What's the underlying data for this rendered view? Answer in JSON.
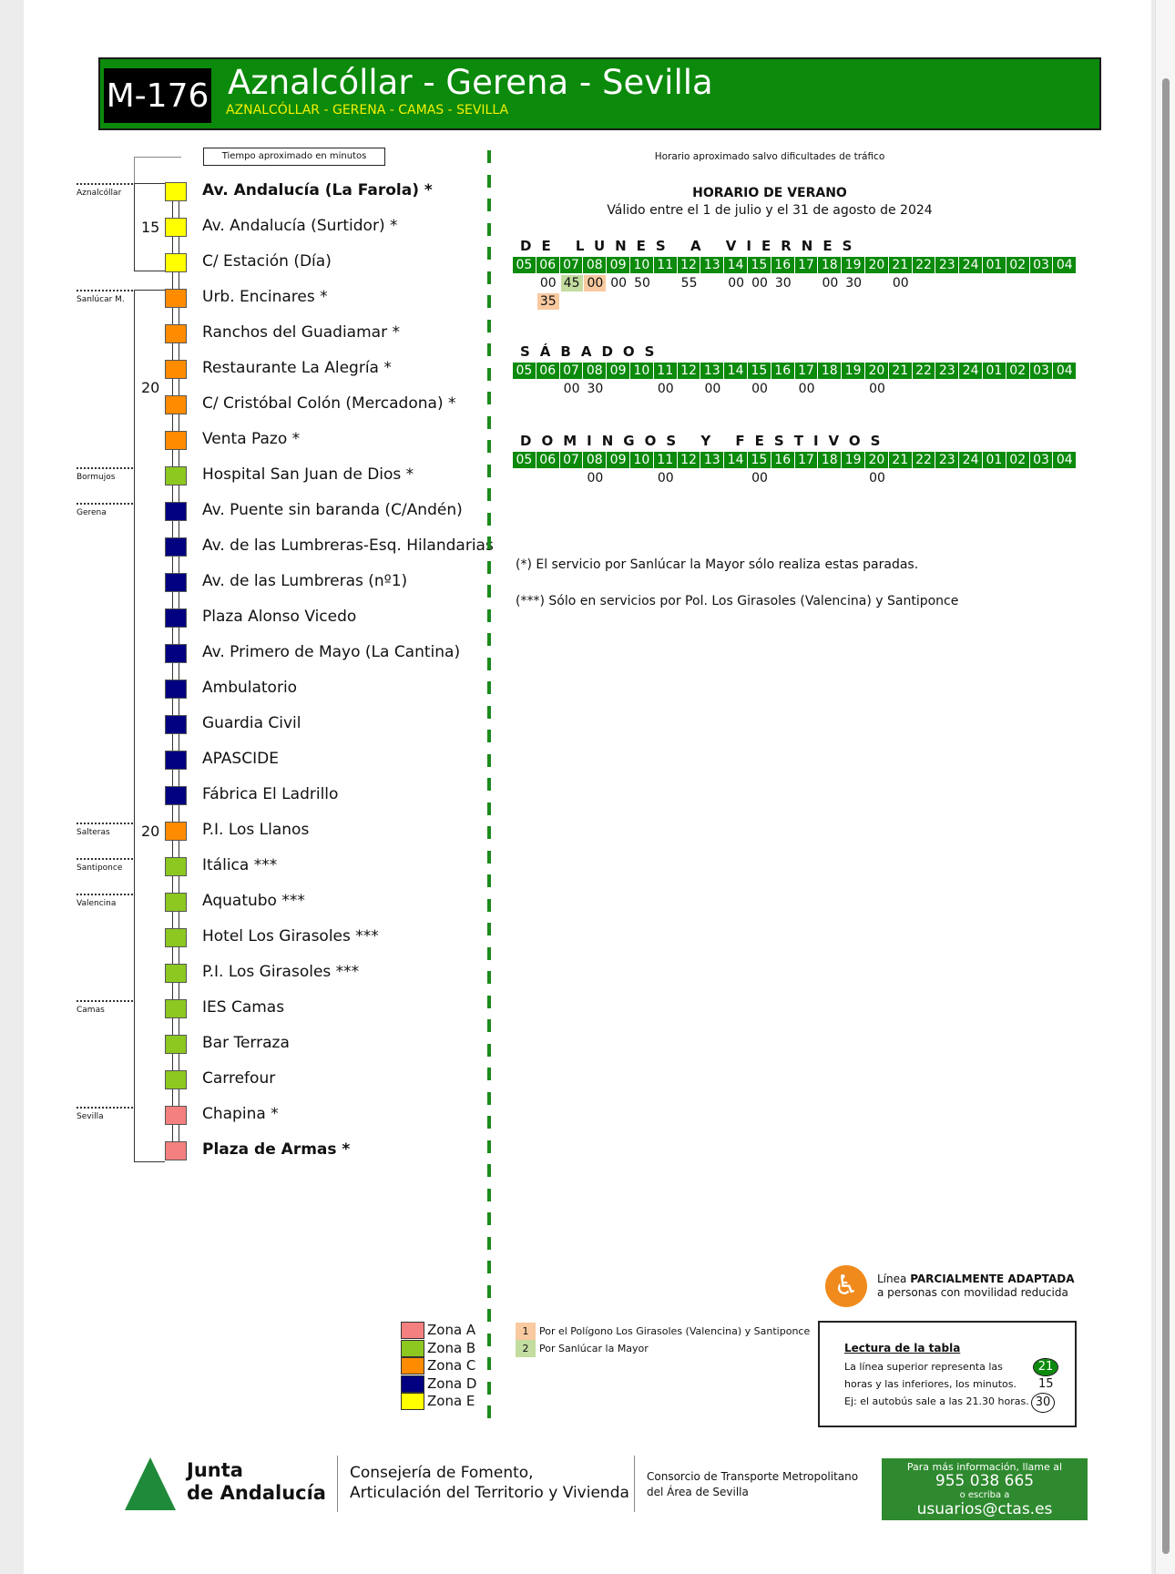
{
  "header": {
    "code": "M-176",
    "title": "Aznalcóllar - Gerena - Sevilla",
    "subtitle": "AZNALCÓLLAR - GERENA - CAMAS - SEVILLA"
  },
  "route": {
    "time_label": "Tiempo aproximado en minutos",
    "times": [
      {
        "value": "15",
        "stop": 1
      },
      {
        "value": "20",
        "stop": 5.5
      },
      {
        "value": "20",
        "stop": 18
      }
    ],
    "towns": [
      {
        "name": "Aznalcóllar",
        "stop": 0
      },
      {
        "name": "Sanlúcar M.",
        "stop": 3
      },
      {
        "name": "Bormujos",
        "stop": 8
      },
      {
        "name": "Gerena",
        "stop": 9
      },
      {
        "name": "Salteras",
        "stop": 18
      },
      {
        "name": "Santiponce",
        "stop": 19
      },
      {
        "name": "Valencina",
        "stop": 20
      },
      {
        "name": "Camas",
        "stop": 23
      },
      {
        "name": "Sevilla",
        "stop": 26
      }
    ],
    "stops": [
      {
        "name": "Av. Andalucía (La Farola) *",
        "zone": "E",
        "bold": true
      },
      {
        "name": "Av. Andalucía (Surtidor) *",
        "zone": "E"
      },
      {
        "name": "C/ Estación (Día)",
        "zone": "E"
      },
      {
        "name": "Urb. Encinares *",
        "zone": "C"
      },
      {
        "name": "Ranchos del Guadiamar *",
        "zone": "C"
      },
      {
        "name": "Restaurante La Alegría *",
        "zone": "C"
      },
      {
        "name": "C/ Cristóbal Colón (Mercadona) *",
        "zone": "C"
      },
      {
        "name": "Venta Pazo *",
        "zone": "C"
      },
      {
        "name": "Hospital San Juan de Dios *",
        "zone": "B"
      },
      {
        "name": "Av. Puente sin baranda (C/Andén)",
        "zone": "D"
      },
      {
        "name": "Av. de las Lumbreras-Esq. Hilandarias",
        "zone": "D"
      },
      {
        "name": "Av. de las Lumbreras (nº1)",
        "zone": "D"
      },
      {
        "name": "Plaza Alonso Vicedo",
        "zone": "D"
      },
      {
        "name": "Av. Primero de Mayo (La Cantina)",
        "zone": "D"
      },
      {
        "name": "Ambulatorio",
        "zone": "D"
      },
      {
        "name": "Guardia Civil",
        "zone": "D"
      },
      {
        "name": "APASCIDE",
        "zone": "D"
      },
      {
        "name": "Fábrica El Ladrillo",
        "zone": "D"
      },
      {
        "name": "P.I. Los Llanos",
        "zone": "C"
      },
      {
        "name": "Itálica ***",
        "zone": "B"
      },
      {
        "name": "Aquatubo ***",
        "zone": "B"
      },
      {
        "name": "Hotel Los Girasoles ***",
        "zone": "B"
      },
      {
        "name": "P.I. Los Girasoles ***",
        "zone": "B"
      },
      {
        "name": "IES Camas",
        "zone": "B"
      },
      {
        "name": "Bar Terraza",
        "zone": "B"
      },
      {
        "name": "Carrefour",
        "zone": "B"
      },
      {
        "name": "Chapina *",
        "zone": "A"
      },
      {
        "name": "Plaza de Armas *",
        "zone": "A",
        "bold": true
      }
    ]
  },
  "zones": [
    {
      "id": "A",
      "label": "Zona A",
      "color": "#f48080"
    },
    {
      "id": "B",
      "label": "Zona B",
      "color": "#8cc820"
    },
    {
      "id": "C",
      "label": "Zona C",
      "color": "#ff8c00"
    },
    {
      "id": "D",
      "label": "Zona D",
      "color": "#000080"
    },
    {
      "id": "E",
      "label": "Zona E",
      "color": "#ffff00"
    }
  ],
  "schedule": {
    "disclaimer": "Horario aproximado salvo dificultades de tráfico",
    "title": "HORARIO DE VERANO",
    "validity": "Válido entre el 1 de julio y el 31 de agosto de 2024",
    "hours": [
      "05",
      "06",
      "07",
      "08",
      "09",
      "10",
      "11",
      "12",
      "13",
      "14",
      "15",
      "16",
      "17",
      "18",
      "19",
      "20",
      "21",
      "22",
      "23",
      "24",
      "01",
      "02",
      "03",
      "04"
    ],
    "variant_colors": {
      "1": "#f9c9a0",
      "2": "#c3dc9f"
    },
    "days": [
      {
        "label": "DE LUNES A VIERNES",
        "departures": [
          {
            "hour": "06",
            "min": "00",
            "row": 0
          },
          {
            "hour": "07",
            "min": "45",
            "row": 0,
            "variant": "2"
          },
          {
            "hour": "08",
            "min": "00",
            "row": 0,
            "variant": "1"
          },
          {
            "hour": "09",
            "min": "00",
            "row": 0
          },
          {
            "hour": "10",
            "min": "50",
            "row": 0
          },
          {
            "hour": "12",
            "min": "55",
            "row": 0
          },
          {
            "hour": "14",
            "min": "00",
            "row": 0
          },
          {
            "hour": "15",
            "min": "00",
            "row": 0
          },
          {
            "hour": "16",
            "min": "30",
            "row": 0
          },
          {
            "hour": "18",
            "min": "00",
            "row": 0
          },
          {
            "hour": "19",
            "min": "30",
            "row": 0
          },
          {
            "hour": "21",
            "min": "00",
            "row": 0
          },
          {
            "hour": "06",
            "min": "35",
            "row": 1,
            "variant": "1"
          }
        ]
      },
      {
        "label": "SÁBADOS",
        "departures": [
          {
            "hour": "07",
            "min": "00",
            "row": 0
          },
          {
            "hour": "08",
            "min": "30",
            "row": 0
          },
          {
            "hour": "11",
            "min": "00",
            "row": 0
          },
          {
            "hour": "13",
            "min": "00",
            "row": 0
          },
          {
            "hour": "15",
            "min": "00",
            "row": 0
          },
          {
            "hour": "17",
            "min": "00",
            "row": 0
          },
          {
            "hour": "20",
            "min": "00",
            "row": 0
          }
        ]
      },
      {
        "label": "DOMINGOS Y FESTIVOS",
        "departures": [
          {
            "hour": "08",
            "min": "00",
            "row": 0
          },
          {
            "hour": "11",
            "min": "00",
            "row": 0
          },
          {
            "hour": "15",
            "min": "00",
            "row": 0
          },
          {
            "hour": "20",
            "min": "00",
            "row": 0
          }
        ]
      }
    ],
    "notes": [
      "(*) El servicio por Sanlúcar la Mayor sólo realiza estas paradas.",
      "(***) Sólo en servicios por Pol. Los Girasoles (Valencina) y Santiponce"
    ]
  },
  "variants": [
    {
      "num": "1",
      "text": "Por el Polígono Los Girasoles (Valencina) y Santiponce"
    },
    {
      "num": "2",
      "text": "Por Sanlúcar la Mayor"
    }
  ],
  "accessibility": {
    "prefix": "Línea ",
    "strong": "PARCIALMENTE ADAPTADA",
    "line2": "a personas con movilidad reducida"
  },
  "reading": {
    "title": "Lectura de la tabla",
    "lines": [
      "La línea superior representa las",
      "horas y las inferiores, los minutos.",
      "Ej: el autobús sale a las 21.30 horas."
    ],
    "example_hour": "21",
    "example_mins": [
      "15",
      "30"
    ]
  },
  "footer": {
    "junta1": "Junta",
    "junta2": "de Andalucía",
    "consejeria1": "Consejería de Fomento,",
    "consejeria2": "Articulación del Territorio y Vivienda",
    "consorcio1": "Consorcio de Transporte Metropolitano",
    "consorcio2": "del Área de Sevilla",
    "info1": "Para más información, llame al",
    "phone": "955 038 665",
    "info2": "o escriba a",
    "email": "usuarios@ctas.es"
  }
}
